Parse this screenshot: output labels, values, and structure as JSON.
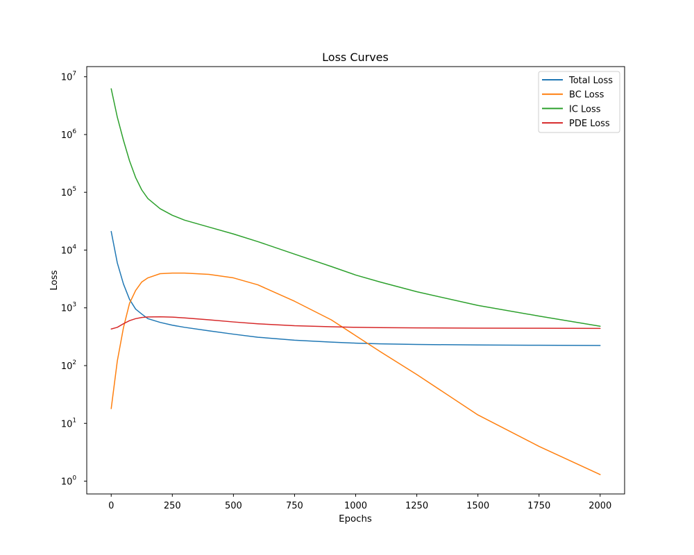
{
  "chart_data": {
    "type": "line",
    "title": "Loss Curves",
    "xlabel": "Epochs",
    "ylabel": "Loss",
    "yscale": "log",
    "xlim": [
      -100,
      2100
    ],
    "ylim": [
      0.6,
      15000000
    ],
    "grid": false,
    "legend_loc": "upper right",
    "x_ticks": [
      {
        "value": 0,
        "label": "0"
      },
      {
        "value": 250,
        "label": "250"
      },
      {
        "value": 500,
        "label": "500"
      },
      {
        "value": 750,
        "label": "750"
      },
      {
        "value": 1000,
        "label": "1000"
      },
      {
        "value": 1250,
        "label": "1250"
      },
      {
        "value": 1500,
        "label": "1500"
      },
      {
        "value": 1750,
        "label": "1750"
      },
      {
        "value": 2000,
        "label": "2000"
      }
    ],
    "y_ticks": [
      {
        "value": 1,
        "base": "10",
        "exp": "0"
      },
      {
        "value": 10,
        "base": "10",
        "exp": "1"
      },
      {
        "value": 100,
        "base": "10",
        "exp": "2"
      },
      {
        "value": 1000,
        "base": "10",
        "exp": "3"
      },
      {
        "value": 10000,
        "base": "10",
        "exp": "4"
      },
      {
        "value": 100000,
        "base": "10",
        "exp": "5"
      },
      {
        "value": 1000000,
        "base": "10",
        "exp": "6"
      },
      {
        "value": 10000000,
        "base": "10",
        "exp": "7"
      }
    ],
    "x": [
      0,
      25,
      50,
      75,
      100,
      125,
      150,
      200,
      250,
      300,
      400,
      500,
      600,
      750,
      900,
      1000,
      1100,
      1250,
      1500,
      1750,
      2000
    ],
    "series": [
      {
        "name": "Total Loss",
        "color": "#1f77b4",
        "values": [
          21000,
          6000,
          2600,
          1400,
          950,
          780,
          650,
          560,
          500,
          460,
          400,
          350,
          310,
          275,
          255,
          245,
          238,
          232,
          228,
          225,
          223
        ]
      },
      {
        "name": "BC Loss",
        "color": "#ff7f0e",
        "values": [
          18,
          120,
          450,
          1200,
          2000,
          2800,
          3300,
          3900,
          4000,
          4000,
          3800,
          3300,
          2500,
          1300,
          620,
          330,
          175,
          70,
          14,
          4,
          1.3
        ]
      },
      {
        "name": "IC Loss",
        "color": "#2ca02c",
        "values": [
          6200000,
          2000000,
          800000,
          350000,
          180000,
          110000,
          78000,
          52000,
          40000,
          33000,
          25000,
          19000,
          14000,
          8500,
          5200,
          3700,
          2800,
          1900,
          1100,
          720,
          480
        ]
      },
      {
        "name": "PDE Loss",
        "color": "#d62728",
        "values": [
          430,
          460,
          530,
          600,
          650,
          680,
          695,
          700,
          690,
          670,
          620,
          570,
          530,
          490,
          470,
          460,
          455,
          450,
          445,
          443,
          440
        ]
      }
    ]
  }
}
